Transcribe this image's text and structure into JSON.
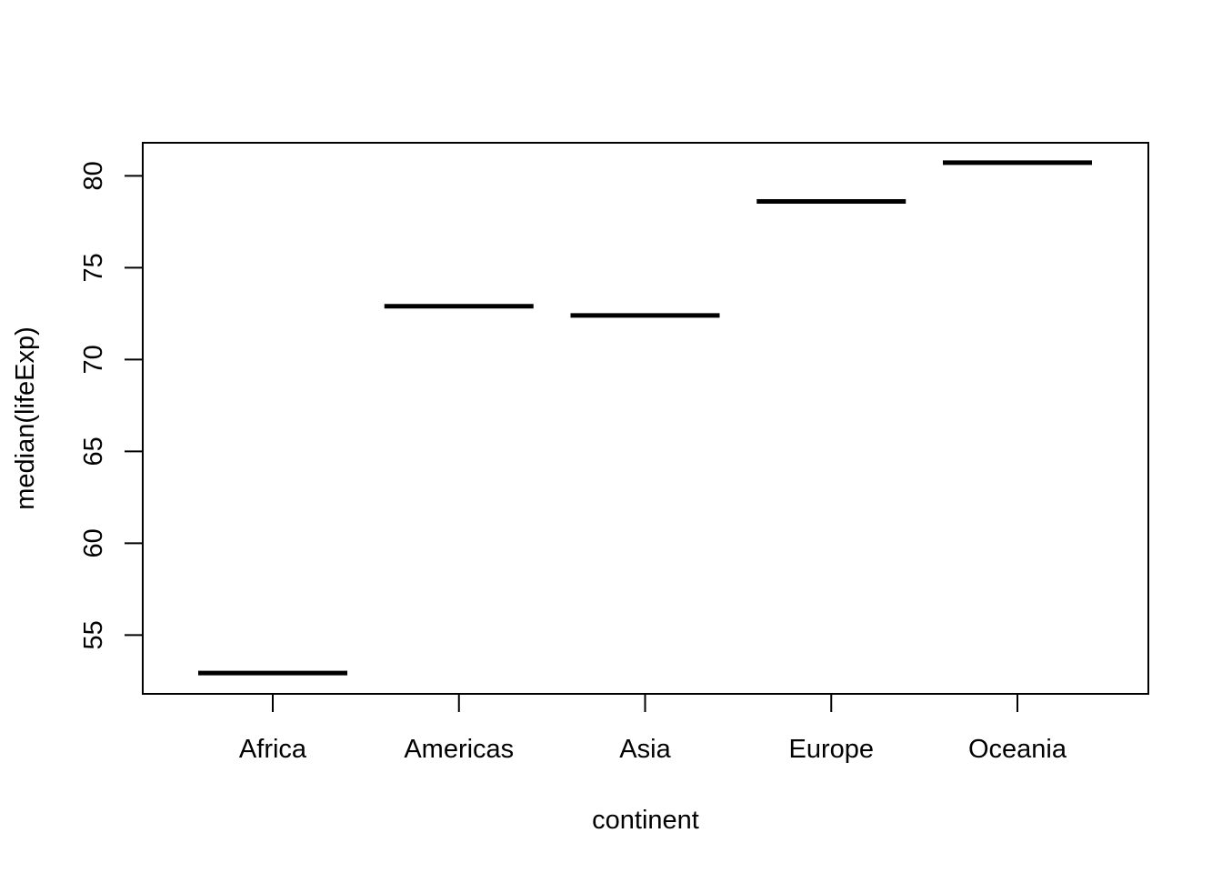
{
  "chart_data": {
    "type": "bar",
    "style": "horizontal segment per category (factor plot of medians)",
    "categories": [
      "Africa",
      "Americas",
      "Asia",
      "Europe",
      "Oceania"
    ],
    "values": [
      52.93,
      72.9,
      72.4,
      78.61,
      80.72
    ],
    "xlabel": "continent",
    "ylabel": "median(lifeExp)",
    "ylim": [
      51.8,
      81.8
    ],
    "yticks": [
      55,
      60,
      65,
      70,
      75,
      80
    ],
    "grid": false,
    "legend": "none",
    "color": "#000000"
  }
}
